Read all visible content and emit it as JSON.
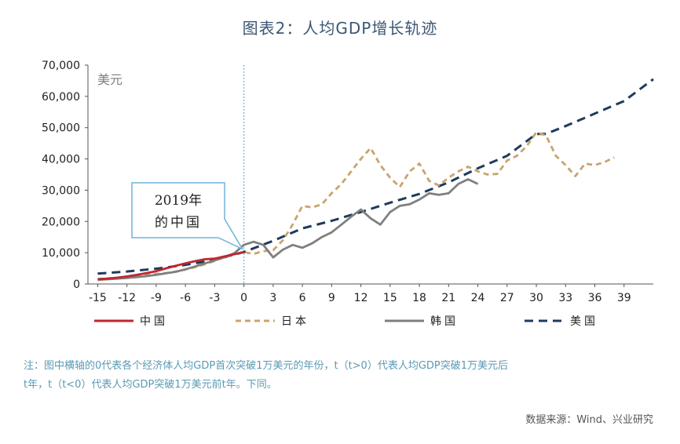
{
  "chart_data": {
    "type": "line",
    "title": "图表2：人均GDP增长轨迹",
    "ylabel": "美元",
    "xlabel": "",
    "ylim": [
      0,
      70000
    ],
    "xlim": [
      -16,
      42
    ],
    "yticks": [
      0,
      10000,
      20000,
      30000,
      40000,
      50000,
      60000,
      70000
    ],
    "ytick_labels": [
      "0",
      "10,000",
      "20,000",
      "30,000",
      "40,000",
      "50,000",
      "60,000",
      "70,000"
    ],
    "xticks": [
      -15,
      -12,
      -9,
      -6,
      -3,
      0,
      3,
      6,
      9,
      12,
      15,
      18,
      21,
      24,
      27,
      30,
      33,
      36,
      39
    ],
    "xtick_labels": [
      "-15",
      "-12",
      "-9",
      "-6",
      "-3",
      "0",
      "3",
      "6",
      "9",
      "12",
      "15",
      "18",
      "21",
      "24",
      "27",
      "30",
      "33",
      "36",
      "39"
    ],
    "grid": false,
    "legend_position": "bottom",
    "annotation": {
      "line1": "2019年",
      "line2": "的中国",
      "x": 0,
      "y": 10200
    },
    "series": [
      {
        "name": "中国",
        "color": "#c0262d",
        "dash": "solid",
        "x": [
          -15,
          -14,
          -13,
          -12,
          -11,
          -10,
          -9,
          -8,
          -7,
          -6,
          -5,
          -4,
          -3,
          -2,
          -1,
          0
        ],
        "y": [
          1500,
          1700,
          2000,
          2400,
          2900,
          3500,
          4100,
          5000,
          5800,
          6600,
          7300,
          7900,
          8100,
          8800,
          9500,
          10200
        ]
      },
      {
        "name": "日本",
        "color": "#c9a46e",
        "dash": "dashed",
        "x": [
          -15,
          -14,
          -13,
          -12,
          -11,
          -10,
          -9,
          -8,
          -7,
          -6,
          -5,
          -4,
          -3,
          -2,
          -1,
          0,
          1,
          2,
          3,
          4,
          5,
          6,
          7,
          8,
          9,
          10,
          11,
          12,
          13,
          14,
          15,
          16,
          17,
          18,
          19,
          20,
          21,
          22,
          23,
          24,
          25,
          26,
          27,
          28,
          29,
          30,
          31,
          32,
          33,
          34,
          35,
          36,
          37,
          38
        ],
        "y": [
          1600,
          1800,
          2000,
          2300,
          2600,
          2900,
          3200,
          3500,
          4000,
          4600,
          5400,
          6300,
          7400,
          8500,
          9500,
          10200,
          9600,
          10500,
          10800,
          14000,
          19000,
          25000,
          24500,
          25500,
          29000,
          32000,
          36000,
          40000,
          43500,
          38000,
          34000,
          31000,
          36000,
          38500,
          33000,
          31500,
          34000,
          36000,
          37500,
          36000,
          35000,
          35200,
          39500,
          41000,
          44000,
          48500,
          47500,
          41000,
          38000,
          34500,
          38500,
          38000,
          39000,
          40500
        ]
      },
      {
        "name": "韩国",
        "color": "#7f7f7f",
        "dash": "solid",
        "x": [
          -15,
          -14,
          -13,
          -12,
          -11,
          -10,
          -9,
          -8,
          -7,
          -6,
          -5,
          -4,
          -3,
          -2,
          -1,
          0,
          1,
          2,
          3,
          4,
          5,
          6,
          7,
          8,
          9,
          10,
          11,
          12,
          13,
          14,
          15,
          16,
          17,
          18,
          19,
          20,
          21,
          22,
          23,
          24
        ],
        "y": [
          1300,
          1500,
          1700,
          1900,
          2200,
          2500,
          2900,
          3400,
          3900,
          4700,
          5600,
          6600,
          7500,
          8600,
          9800,
          12500,
          13500,
          12500,
          8500,
          11000,
          12500,
          11600,
          13000,
          15000,
          16500,
          19000,
          21500,
          23800,
          21000,
          19000,
          23000,
          25000,
          25500,
          27000,
          29000,
          28500,
          29000,
          32000,
          33500,
          32000
        ]
      },
      {
        "name": "美国",
        "color": "#1f3b5c",
        "dash": "dashed",
        "x": [
          -15,
          -12,
          -9,
          -6,
          -3,
          0,
          3,
          6,
          9,
          12,
          15,
          18,
          21,
          24,
          27,
          30,
          31,
          33,
          36,
          39,
          42
        ],
        "y": [
          3300,
          4000,
          4900,
          6100,
          7700,
          10200,
          13800,
          17800,
          20200,
          23000,
          26000,
          28800,
          32500,
          37000,
          41000,
          48000,
          48000,
          50500,
          54500,
          58500,
          65500
        ]
      }
    ]
  },
  "note": {
    "line1": "注：图中横轴的0代表各个经济体人均GDP首次突破1万美元的年份，t（t>0）代表人均GDP突破1万美元后",
    "line2": "t年，t（t<0）代表人均GDP突破1万美元前t年。下同。"
  },
  "source": "数据来源：Wind、兴业研究"
}
